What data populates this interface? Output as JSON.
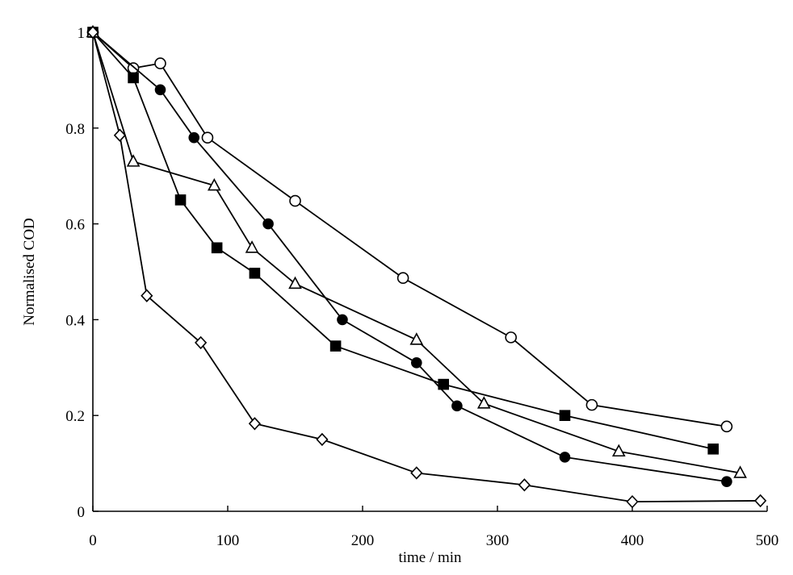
{
  "chart_data": {
    "type": "line",
    "title": "",
    "xlabel": "time / min",
    "ylabel": "Normalised COD",
    "xlim": [
      0,
      500
    ],
    "ylim": [
      0,
      1
    ],
    "xticks": [
      "0",
      "100",
      "200",
      "300",
      "400",
      "500"
    ],
    "yticks": [
      "0",
      "0.2",
      "0.4",
      "0.6",
      "0.8",
      "1"
    ],
    "xtick_values": [
      0,
      100,
      200,
      300,
      400,
      500
    ],
    "ytick_values": [
      0,
      0.2,
      0.4,
      0.6,
      0.8,
      1
    ],
    "grid": false,
    "legend": "none",
    "series": [
      {
        "marker": "open-circle",
        "x": [
          0,
          30,
          50,
          85,
          150,
          230,
          310,
          370,
          470
        ],
        "y": [
          1.0,
          0.925,
          0.935,
          0.78,
          0.648,
          0.487,
          0.363,
          0.222,
          0.177
        ]
      },
      {
        "marker": "filled-circle",
        "x": [
          0,
          50,
          75,
          130,
          185,
          240,
          270,
          350,
          470
        ],
        "y": [
          1.0,
          0.88,
          0.78,
          0.6,
          0.4,
          0.31,
          0.22,
          0.113,
          0.062
        ]
      },
      {
        "marker": "filled-square",
        "x": [
          0,
          30,
          65,
          92,
          120,
          180,
          260,
          350,
          460
        ],
        "y": [
          1.0,
          0.905,
          0.65,
          0.55,
          0.497,
          0.345,
          0.265,
          0.2,
          0.13
        ]
      },
      {
        "marker": "open-triangle",
        "x": [
          0,
          30,
          90,
          118,
          150,
          240,
          290,
          390,
          480
        ],
        "y": [
          1.0,
          0.73,
          0.68,
          0.55,
          0.475,
          0.358,
          0.225,
          0.125,
          0.08
        ]
      },
      {
        "marker": "open-diamond",
        "x": [
          0,
          20,
          40,
          80,
          120,
          170,
          240,
          320,
          400,
          495
        ],
        "y": [
          1.0,
          0.785,
          0.45,
          0.352,
          0.183,
          0.15,
          0.08,
          0.055,
          0.02,
          0.022
        ]
      }
    ]
  }
}
